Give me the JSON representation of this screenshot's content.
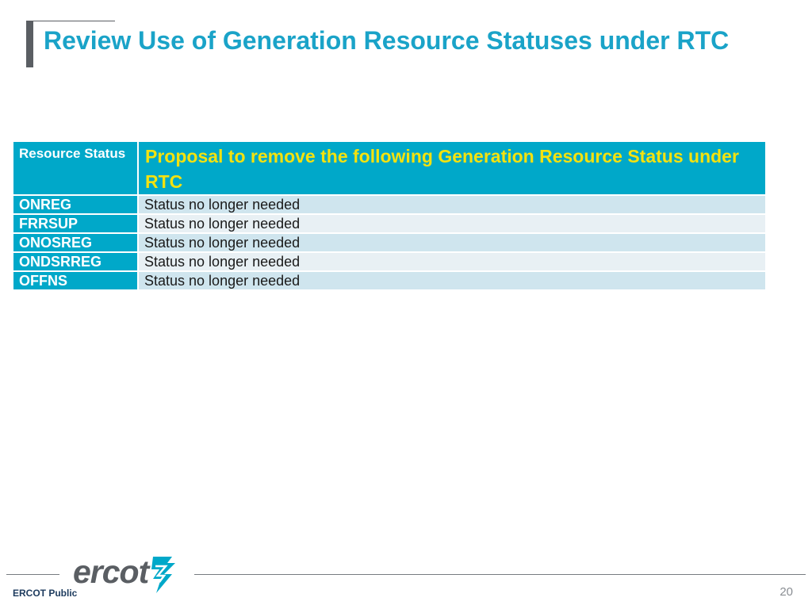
{
  "slide": {
    "title": "Review Use of Generation Resource Statuses under RTC"
  },
  "table": {
    "headers": {
      "col1": "Resource Status",
      "col2": "Proposal to remove the following Generation Resource Status under RTC"
    },
    "rows": [
      {
        "code": "ONREG",
        "description": "Status no longer needed"
      },
      {
        "code": "FRRSUP",
        "description": "Status no longer needed"
      },
      {
        "code": "ONOSREG",
        "description": "Status no longer needed"
      },
      {
        "code": "ONDSRREG",
        "description": "Status no longer needed"
      },
      {
        "code": "OFFNS",
        "description": "Status no longer needed"
      }
    ]
  },
  "footer": {
    "logo_text": "ercot",
    "classification": "ERCOT Public",
    "page_number": "20"
  },
  "colors": {
    "title": "#1aa3c8",
    "header_bg": "#00a8c9",
    "header_highlight": "#f3e20f",
    "row_odd": "#cfe5ee",
    "row_even": "#e8f0f4",
    "accent_gray": "#5a5e63",
    "logo_mark": "#00a8c9"
  }
}
